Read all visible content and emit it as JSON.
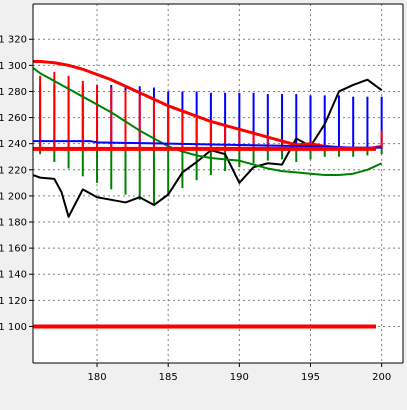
{
  "chart_data": {
    "type": "line",
    "title": "",
    "xlabel": "",
    "ylabel": "",
    "xlim": [
      175.5,
      201.5
    ],
    "ylim": [
      1072,
      1347
    ],
    "grid": true,
    "x_ticks": [
      180,
      185,
      190,
      195,
      200
    ],
    "y_ticks": [
      1100,
      1120,
      1140,
      1160,
      1180,
      1200,
      1220,
      1240,
      1260,
      1280,
      1300,
      1320
    ],
    "x_tick_labels": [
      "180",
      "185",
      "190",
      "195",
      "200"
    ],
    "y_tick_labels": [
      "1 100",
      "1 120",
      "1 140",
      "1 160",
      "1 180",
      "1 200",
      "1 220",
      "1 240",
      "1 260",
      "1 280",
      "1 300",
      "1 320"
    ],
    "colors": {
      "price": "#000000",
      "red_curve": "#ff0000",
      "green_curve": "#008000",
      "blue_line": "#0000ff",
      "red_level": "#ff0000",
      "plot_bg": "#ffffff",
      "grid": "#808080"
    },
    "series": [
      {
        "style": "line",
        "color": "#000000",
        "x": [
          175.5,
          176,
          177,
          177.5,
          178,
          179,
          180,
          181,
          182,
          183,
          184,
          185,
          186,
          187,
          188,
          189,
          190,
          191,
          192,
          193,
          194,
          195,
          196,
          197,
          198,
          199,
          200
        ],
        "y": [
          1216,
          1214,
          1213,
          1203,
          1184,
          1205,
          1199,
          1197,
          1195,
          1199,
          1193,
          1201,
          1218,
          1226,
          1235,
          1232,
          1210,
          1222,
          1225,
          1224,
          1244,
          1238,
          1255,
          1280,
          1285,
          1289,
          1281
        ]
      },
      {
        "style": "line",
        "color": "#ff0000",
        "x": [
          175.5,
          176,
          177,
          178,
          179,
          180,
          181,
          182,
          183,
          184,
          185,
          186,
          187,
          188,
          189,
          190,
          191,
          192,
          193,
          194,
          195,
          196,
          197,
          198,
          199,
          200
        ],
        "y": [
          1303,
          1303,
          1302,
          1300,
          1297,
          1293,
          1289,
          1284,
          1279,
          1274,
          1269,
          1265,
          1261,
          1257,
          1254,
          1251,
          1248,
          1245,
          1242,
          1239,
          1240,
          1238,
          1237,
          1236,
          1236,
          1238
        ]
      },
      {
        "style": "line",
        "color": "#008000",
        "x": [
          175.5,
          176,
          177,
          178,
          179,
          180,
          181,
          182,
          183,
          184,
          185,
          186,
          187,
          188,
          189,
          190,
          191,
          192,
          193,
          194,
          195,
          196,
          197,
          198,
          199,
          200
        ],
        "y": [
          1298,
          1294,
          1288,
          1282,
          1276,
          1270,
          1264,
          1257,
          1250,
          1244,
          1238,
          1234,
          1231,
          1229,
          1228,
          1227,
          1224,
          1221,
          1219,
          1218,
          1217,
          1216,
          1216,
          1217,
          1220,
          1225
        ]
      },
      {
        "style": "line",
        "color": "#0000ff",
        "x": [
          175.5,
          179.5,
          180,
          185,
          190,
          195,
          198,
          200
        ],
        "y": [
          1242,
          1242,
          1241,
          1240,
          1239,
          1238,
          1237,
          1237
        ]
      },
      {
        "style": "hline",
        "color": "#ff0000",
        "y": 1236
      },
      {
        "style": "hline",
        "color": "#ff0000",
        "y": 1100
      },
      {
        "style": "vbars",
        "color": "#0000ff",
        "base": 1236,
        "x": [
          176,
          177,
          178,
          179,
          180,
          181,
          182,
          183,
          184,
          185,
          186,
          187,
          188,
          189,
          190,
          191,
          192,
          193,
          194,
          195,
          196,
          197,
          198,
          199,
          200
        ],
        "y": [
          1285,
          1285,
          1285,
          1285,
          1285,
          1285,
          1284,
          1284,
          1283,
          1280,
          1280,
          1280,
          1279,
          1279,
          1279,
          1279,
          1278,
          1278,
          1278,
          1277,
          1277,
          1277,
          1276,
          1276,
          1276
        ]
      },
      {
        "style": "vbars",
        "color": "#008000",
        "base": 1236,
        "x": [
          176,
          177,
          178,
          179,
          180,
          181,
          182,
          183,
          184,
          185,
          186,
          187,
          188,
          189,
          190,
          191,
          192,
          193,
          194,
          195,
          196,
          197,
          198,
          199,
          200
        ],
        "y": [
          1232,
          1226,
          1221,
          1215,
          1210,
          1205,
          1201,
          1197,
          1193,
          1201,
          1206,
          1212,
          1216,
          1219,
          1222,
          1225,
          1227,
          1228,
          1226,
          1228,
          1230,
          1230,
          1230,
          1231,
          1232
        ]
      },
      {
        "style": "vbars",
        "color": "#ff0000",
        "base": 1236,
        "x": [
          176,
          177,
          178,
          179,
          180,
          181,
          182,
          183,
          184,
          185,
          186,
          187,
          188,
          189,
          190,
          191,
          192,
          193,
          194,
          195,
          196,
          197,
          198,
          199,
          200
        ],
        "y": [
          1292,
          1295,
          1292,
          1288,
          1285,
          1283,
          1281,
          1277,
          1273,
          1270,
          1266,
          1262,
          1258,
          1255,
          1252,
          1249,
          1246,
          1243,
          1240,
          1238,
          1237,
          1236,
          1236,
          1236,
          1250
        ]
      }
    ]
  }
}
